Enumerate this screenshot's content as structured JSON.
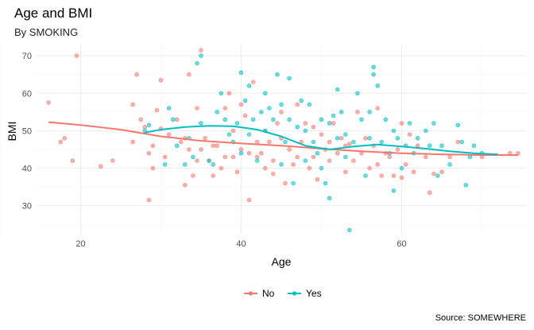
{
  "chart_data": {
    "type": "scatter",
    "title": "Age and BMI",
    "subtitle": "By SMOKING",
    "caption": "Source: SOMEWHERE",
    "xlabel": "Age",
    "ylabel": "BMI",
    "xlim": [
      14.5,
      75.5
    ],
    "ylim": [
      22.5,
      73
    ],
    "x_ticks": [
      20,
      40,
      60
    ],
    "y_ticks": [
      30,
      40,
      50,
      60,
      70
    ],
    "grid": true,
    "legend_position": "bottom",
    "series": [
      {
        "name": "No",
        "color": "#F8766D",
        "points": [
          [
            16,
            57.5
          ],
          [
            17.5,
            47
          ],
          [
            18,
            48
          ],
          [
            19,
            42
          ],
          [
            19.5,
            70
          ],
          [
            22.5,
            40.5
          ],
          [
            24,
            42
          ],
          [
            26.5,
            57
          ],
          [
            26.5,
            47
          ],
          [
            27,
            65
          ],
          [
            27.5,
            53
          ],
          [
            28,
            51
          ],
          [
            28.5,
            31.5
          ],
          [
            28.5,
            44
          ],
          [
            29,
            46
          ],
          [
            29,
            40
          ],
          [
            29.5,
            55.5
          ],
          [
            30,
            50.5
          ],
          [
            30,
            63.5
          ],
          [
            30.5,
            43
          ],
          [
            31,
            49
          ],
          [
            32,
            53
          ],
          [
            32.5,
            47
          ],
          [
            33,
            48
          ],
          [
            33,
            35.5
          ],
          [
            33.5,
            65
          ],
          [
            33.5,
            45
          ],
          [
            34,
            38
          ],
          [
            34.5,
            42
          ],
          [
            34.5,
            56
          ],
          [
            35,
            71.5
          ],
          [
            35,
            45
          ],
          [
            35.5,
            48
          ],
          [
            36,
            42
          ],
          [
            36.5,
            46
          ],
          [
            36.5,
            38
          ],
          [
            37,
            46
          ],
          [
            37.5,
            40
          ],
          [
            38,
            56
          ],
          [
            38,
            43
          ],
          [
            38.5,
            60
          ],
          [
            39,
            50
          ],
          [
            39,
            43
          ],
          [
            39.5,
            39
          ],
          [
            40,
            57
          ],
          [
            40,
            45
          ],
          [
            40.5,
            54
          ],
          [
            41,
            44
          ],
          [
            41,
            31.5
          ],
          [
            41.5,
            63
          ],
          [
            42,
            47
          ],
          [
            42,
            43
          ],
          [
            42.5,
            44
          ],
          [
            43,
            50
          ],
          [
            43,
            40
          ],
          [
            43.5,
            47
          ],
          [
            44,
            42
          ],
          [
            44,
            38.5
          ],
          [
            44.5,
            52
          ],
          [
            45,
            55
          ],
          [
            45,
            48
          ],
          [
            45.5,
            36
          ],
          [
            46,
            45
          ],
          [
            46.5,
            41
          ],
          [
            47,
            43
          ],
          [
            47,
            57
          ],
          [
            47.5,
            47
          ],
          [
            48,
            52
          ],
          [
            48.5,
            40
          ],
          [
            49,
            43
          ],
          [
            49,
            51
          ],
          [
            49.5,
            37
          ],
          [
            50,
            49
          ],
          [
            50.5,
            45
          ],
          [
            51,
            47
          ],
          [
            51,
            42
          ],
          [
            51.5,
            52
          ],
          [
            52,
            44
          ],
          [
            52.5,
            48
          ],
          [
            53,
            46
          ],
          [
            53,
            39
          ],
          [
            53.5,
            46.5
          ],
          [
            54,
            42
          ],
          [
            54.5,
            55
          ],
          [
            55,
            44
          ],
          [
            55.5,
            48
          ],
          [
            56,
            40
          ],
          [
            56.5,
            46
          ],
          [
            57,
            56
          ],
          [
            57,
            41
          ],
          [
            57.5,
            38
          ],
          [
            58,
            44
          ],
          [
            58.5,
            43
          ],
          [
            59,
            38
          ],
          [
            59.5,
            45
          ],
          [
            60,
            37.5
          ],
          [
            60,
            52
          ],
          [
            60.5,
            41
          ],
          [
            61,
            49
          ],
          [
            61.5,
            39
          ],
          [
            62,
            46
          ],
          [
            63,
            43
          ],
          [
            63.5,
            33.5
          ],
          [
            64,
            38.5
          ],
          [
            65,
            39
          ],
          [
            66,
            43
          ],
          [
            67,
            47
          ],
          [
            70,
            43
          ],
          [
            73.5,
            44
          ],
          [
            74.5,
            44
          ]
        ],
        "smooth": [
          [
            16,
            52.3
          ],
          [
            20,
            51.5
          ],
          [
            25,
            50.3
          ],
          [
            30,
            48.5
          ],
          [
            35,
            47.3
          ],
          [
            40,
            46.6
          ],
          [
            45,
            46
          ],
          [
            50,
            45.2
          ],
          [
            55,
            44.5
          ],
          [
            60,
            44
          ],
          [
            65,
            43.7
          ],
          [
            70,
            43.5
          ],
          [
            74.5,
            43.5
          ]
        ]
      },
      {
        "name": "Yes",
        "color": "#00BFC4",
        "points": [
          [
            28,
            50
          ],
          [
            28.5,
            51.5
          ],
          [
            30.5,
            41
          ],
          [
            31,
            56
          ],
          [
            31.5,
            53
          ],
          [
            32,
            46
          ],
          [
            33,
            41
          ],
          [
            33.5,
            48
          ],
          [
            34,
            43
          ],
          [
            34.5,
            68
          ],
          [
            35,
            70
          ],
          [
            35,
            52
          ],
          [
            36,
            42
          ],
          [
            36.5,
            41
          ],
          [
            37,
            55
          ],
          [
            37.5,
            60
          ],
          [
            38,
            53
          ],
          [
            38.5,
            49
          ],
          [
            39,
            47
          ],
          [
            39.5,
            52
          ],
          [
            40,
            65.5
          ],
          [
            40,
            44
          ],
          [
            40.5,
            58
          ],
          [
            41,
            62
          ],
          [
            41,
            49
          ],
          [
            41.5,
            53
          ],
          [
            42,
            42
          ],
          [
            42.5,
            55
          ],
          [
            43,
            60
          ],
          [
            43,
            50
          ],
          [
            43.5,
            56
          ],
          [
            44,
            53
          ],
          [
            44.5,
            65
          ],
          [
            45,
            57
          ],
          [
            45,
            41
          ],
          [
            45.5,
            47
          ],
          [
            46,
            64
          ],
          [
            46,
            53
          ],
          [
            46.5,
            36
          ],
          [
            47,
            51
          ],
          [
            47.5,
            58
          ],
          [
            48,
            50
          ],
          [
            48,
            42
          ],
          [
            48.5,
            57
          ],
          [
            49,
            47
          ],
          [
            49.5,
            44
          ],
          [
            50,
            53
          ],
          [
            50,
            40
          ],
          [
            50.5,
            36
          ],
          [
            51,
            52
          ],
          [
            51,
            32
          ],
          [
            51.5,
            54
          ],
          [
            52,
            61
          ],
          [
            52,
            48
          ],
          [
            52.5,
            55
          ],
          [
            53,
            49
          ],
          [
            53,
            43
          ],
          [
            53.5,
            23.5
          ],
          [
            54,
            47
          ],
          [
            54.5,
            60
          ],
          [
            55,
            53
          ],
          [
            55.5,
            38
          ],
          [
            56,
            55
          ],
          [
            56,
            48
          ],
          [
            56.5,
            67
          ],
          [
            56.5,
            65
          ],
          [
            57,
            62
          ],
          [
            57.5,
            47
          ],
          [
            58,
            53
          ],
          [
            58.5,
            44
          ],
          [
            59,
            50
          ],
          [
            59,
            34
          ],
          [
            59.5,
            48
          ],
          [
            60,
            40
          ],
          [
            60.5,
            46
          ],
          [
            61,
            52
          ],
          [
            61.5,
            44
          ],
          [
            62,
            48
          ],
          [
            63,
            50
          ],
          [
            63.5,
            46
          ],
          [
            64,
            52
          ],
          [
            64.5,
            38
          ],
          [
            65,
            46
          ],
          [
            66,
            41
          ],
          [
            67,
            51.5
          ],
          [
            67.5,
            47
          ],
          [
            68,
            35.5
          ],
          [
            68.5,
            43
          ],
          [
            69,
            46
          ],
          [
            70,
            44
          ]
        ],
        "smooth": [
          [
            28,
            49.5
          ],
          [
            30,
            50.3
          ],
          [
            33,
            51
          ],
          [
            36,
            51.3
          ],
          [
            39,
            51.2
          ],
          [
            42,
            50.3
          ],
          [
            45,
            48.5
          ],
          [
            48,
            46
          ],
          [
            51,
            45
          ],
          [
            54,
            45.8
          ],
          [
            57,
            46.3
          ],
          [
            60,
            45.8
          ],
          [
            63,
            45.2
          ],
          [
            66,
            44.5
          ],
          [
            69,
            44
          ],
          [
            72,
            43.7
          ]
        ]
      }
    ]
  }
}
